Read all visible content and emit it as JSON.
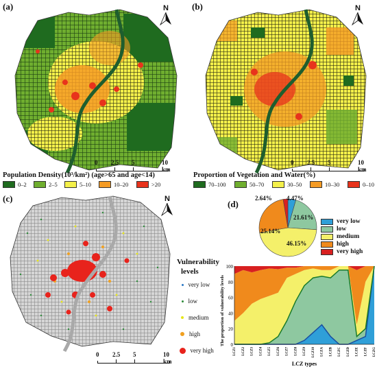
{
  "panel_a": {
    "label": "(a)",
    "north": "N",
    "legend_title": "Population Density(10³/km²) (age>65 and age<14)",
    "legend_items": [
      {
        "label": "0–2",
        "color": "#1f6b1f"
      },
      {
        "label": "2–5",
        "color": "#6fae2f"
      },
      {
        "label": "5–10",
        "color": "#f4f04a"
      },
      {
        "label": "10–20",
        "color": "#f49b24"
      },
      {
        "label": ">20",
        "color": "#e8331c"
      }
    ],
    "scale": {
      "t0": "0",
      "t1": "2.5",
      "t2": "5",
      "t3": "10 km"
    }
  },
  "panel_b": {
    "label": "(b)",
    "north": "N",
    "legend_title": "Proportion of Vegetation and Water(%)",
    "legend_items": [
      {
        "label": "70–100",
        "color": "#1f6b1f"
      },
      {
        "label": "50–70",
        "color": "#6fae2f"
      },
      {
        "label": "30–50",
        "color": "#f4f04a"
      },
      {
        "label": "10–30",
        "color": "#f49b24"
      },
      {
        "label": "0–10",
        "color": "#e8331c"
      }
    ],
    "scale": {
      "t0": "0",
      "t1": "2.5",
      "t2": "5",
      "t3": "10 km"
    }
  },
  "panel_c": {
    "label": "(c)",
    "north": "N",
    "legend_title_1": "Vulnerability",
    "legend_title_2": "levels",
    "legend_items": [
      {
        "label": "very low",
        "color": "#2b78c5"
      },
      {
        "label": "low",
        "color": "#2e8b3a"
      },
      {
        "label": "medium",
        "color": "#e6e619"
      },
      {
        "label": "high",
        "color": "#f0a020"
      },
      {
        "label": "very high",
        "color": "#e8231c"
      }
    ],
    "scale": {
      "t0": "0",
      "t1": "2.5",
      "t2": "5",
      "t3": "10 km"
    }
  },
  "panel_d": {
    "label": "(d)",
    "pie_labels": [
      "2.64%",
      "4.47%",
      "21.61%",
      "25.14%",
      "46.15%"
    ],
    "legend_items": [
      {
        "label": "very low",
        "color": "#2f9fd8"
      },
      {
        "label": "low",
        "color": "#8ec8a0"
      },
      {
        "label": "medium",
        "color": "#f4f06a"
      },
      {
        "label": "high",
        "color": "#f08a1c"
      },
      {
        "label": "very high",
        "color": "#d82020"
      }
    ]
  },
  "chart_data": {
    "type": "area",
    "title": "",
    "xlabel": "LCZ types",
    "ylabel": "The proportion of vulnerability levels",
    "ylim": [
      0,
      100
    ],
    "yticks": [
      "0",
      "20",
      "40",
      "60",
      "80",
      "100"
    ],
    "categories": [
      "LCZ1",
      "LCZ2",
      "LCZ3",
      "LCZ4",
      "LCZ5",
      "LCZ6",
      "LCZ7",
      "LCZ8",
      "LCZ9",
      "LCZ10",
      "LCZA",
      "LCZB",
      "LCZC",
      "LCZD",
      "LCZE",
      "LCZF",
      "LCZG"
    ],
    "series": [
      {
        "name": "very low",
        "color": "#2f9fd8",
        "values": [
          0,
          0,
          0,
          0,
          0,
          0,
          0,
          0,
          5,
          15,
          25,
          10,
          0,
          0,
          5,
          10,
          100
        ]
      },
      {
        "name": "low",
        "color": "#8ec8a0",
        "values": [
          0,
          0,
          0,
          0,
          2,
          10,
          30,
          55,
          70,
          70,
          62,
          75,
          95,
          95,
          5,
          10,
          0
        ]
      },
      {
        "name": "medium",
        "color": "#f4f06a",
        "values": [
          30,
          40,
          52,
          58,
          60,
          56,
          55,
          35,
          20,
          12,
          8,
          10,
          5,
          5,
          15,
          60,
          0
        ]
      },
      {
        "name": "high",
        "color": "#f08a1c",
        "values": [
          60,
          55,
          40,
          37,
          35,
          30,
          13,
          8,
          5,
          3,
          5,
          5,
          0,
          0,
          70,
          20,
          0
        ]
      },
      {
        "name": "very high",
        "color": "#d82020",
        "values": [
          10,
          5,
          8,
          5,
          3,
          4,
          2,
          2,
          0,
          0,
          0,
          0,
          0,
          0,
          5,
          0,
          0
        ]
      }
    ]
  }
}
